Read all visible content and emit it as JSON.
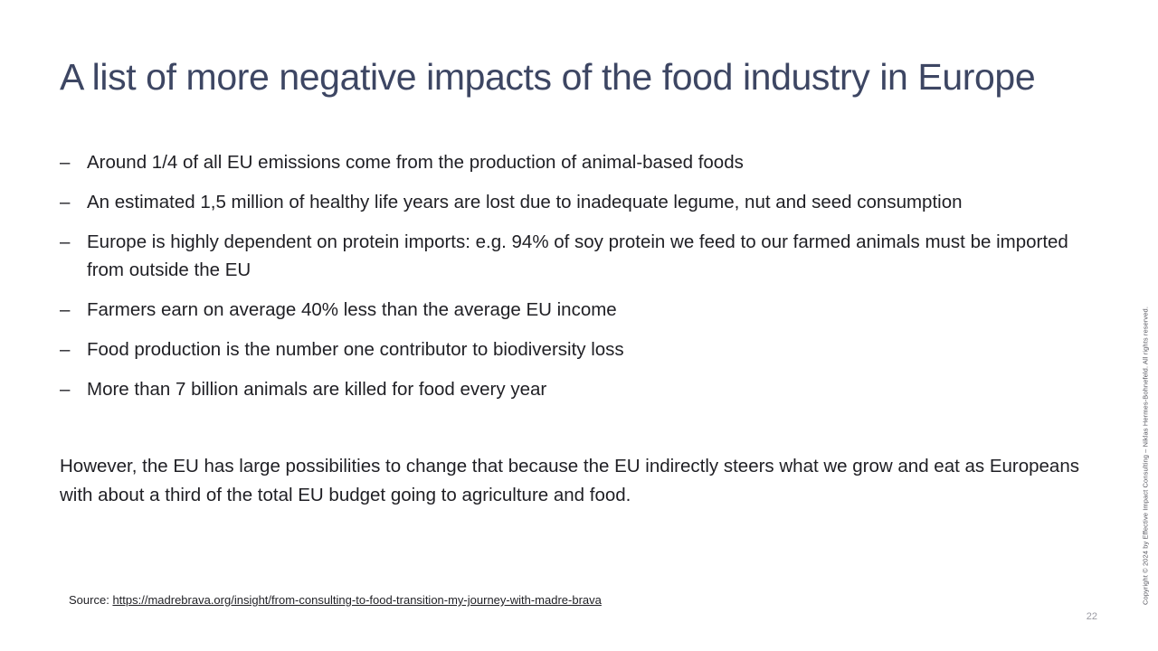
{
  "slide": {
    "title": "A list of more negative impacts of the food industry in Europe",
    "bullet_marker": "–",
    "bullets": [
      "Around 1/4 of all EU emissions come from the production of animal-based foods",
      "An estimated 1,5 million of healthy life years are lost due to inadequate legume, nut and seed consumption",
      "Europe is highly dependent on protein imports: e.g. 94% of soy protein we feed to our farmed animals must be imported from outside the EU",
      "Farmers earn on average 40% less than the average EU income",
      "Food production is the number one contributor to biodiversity loss",
      "More than 7 billion animals are killed for food every year"
    ],
    "closing": "However, the EU has large possibilities to change that because the EU indirectly steers what we grow and eat as Europeans with about a third of the total EU budget going to agriculture and food.",
    "source": {
      "label": "Source:",
      "link_text": "https://madrebrava.org/insight/from-consulting-to-food-transition-my-journey-with-madre-brava"
    },
    "page_number": "22",
    "copyright": "Copyright © 2024 by Effective Impact Consulting – Niklas Hermes-Bohnefeld. All rights reserved."
  }
}
